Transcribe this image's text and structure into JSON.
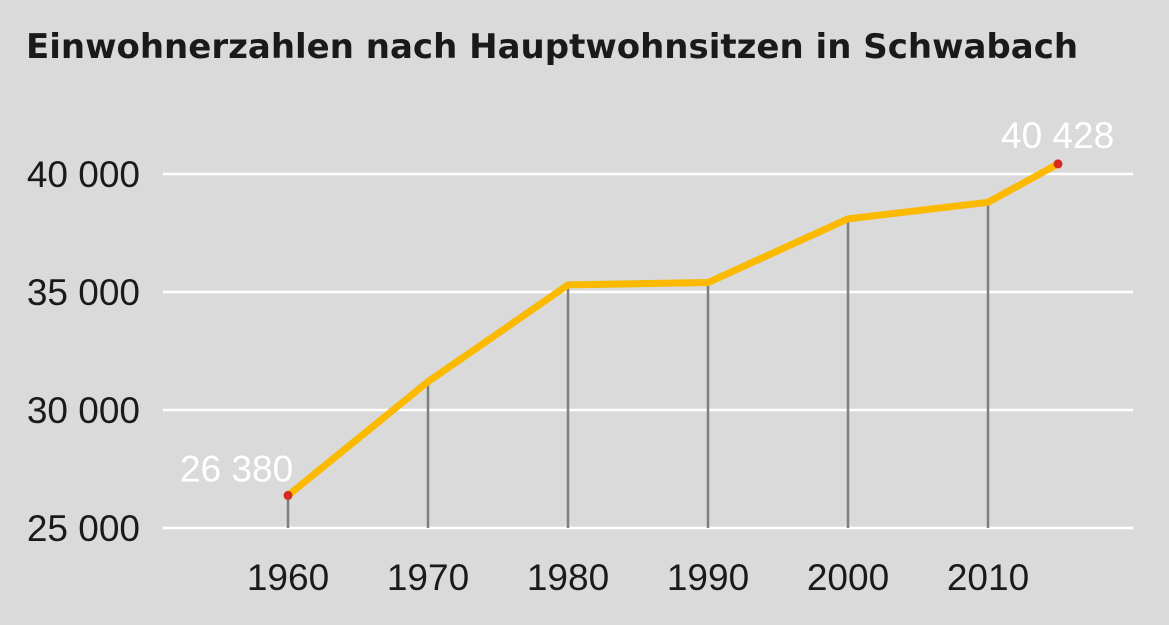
{
  "chart_data": {
    "type": "line",
    "title": "Einwohnerzahlen nach Hauptwohnsitzen in Schwabach",
    "xlabel": "",
    "ylabel": "",
    "x": [
      1960,
      1970,
      1980,
      1990,
      2000,
      2010,
      2015
    ],
    "x_tick_values": [
      1960,
      1970,
      1980,
      1990,
      2000,
      2010
    ],
    "x_tick_labels": [
      "1960",
      "1970",
      "1980",
      "1990",
      "2000",
      "2010"
    ],
    "xlim": [
      1950,
      2020
    ],
    "y_tick_values": [
      25000,
      30000,
      35000,
      40000
    ],
    "y_tick_labels": [
      "25 000",
      "30 000",
      "35 000",
      "40 000"
    ],
    "ylim": [
      25000,
      40000
    ],
    "grid": "horizontal",
    "series": [
      {
        "values": [
          26380,
          31200,
          35300,
          35400,
          38100,
          38800,
          40428
        ]
      }
    ],
    "data_labels": [
      {
        "x": 1960,
        "y": 26380,
        "text": "26 380"
      },
      {
        "x": 2015,
        "y": 40428,
        "text": "40 428"
      }
    ],
    "colors": {
      "background": "#dadada",
      "line": "#fbb900",
      "gridline": "#ffffff",
      "dropline": "#7f7f7f",
      "endpoint": "#d52b1e"
    }
  }
}
